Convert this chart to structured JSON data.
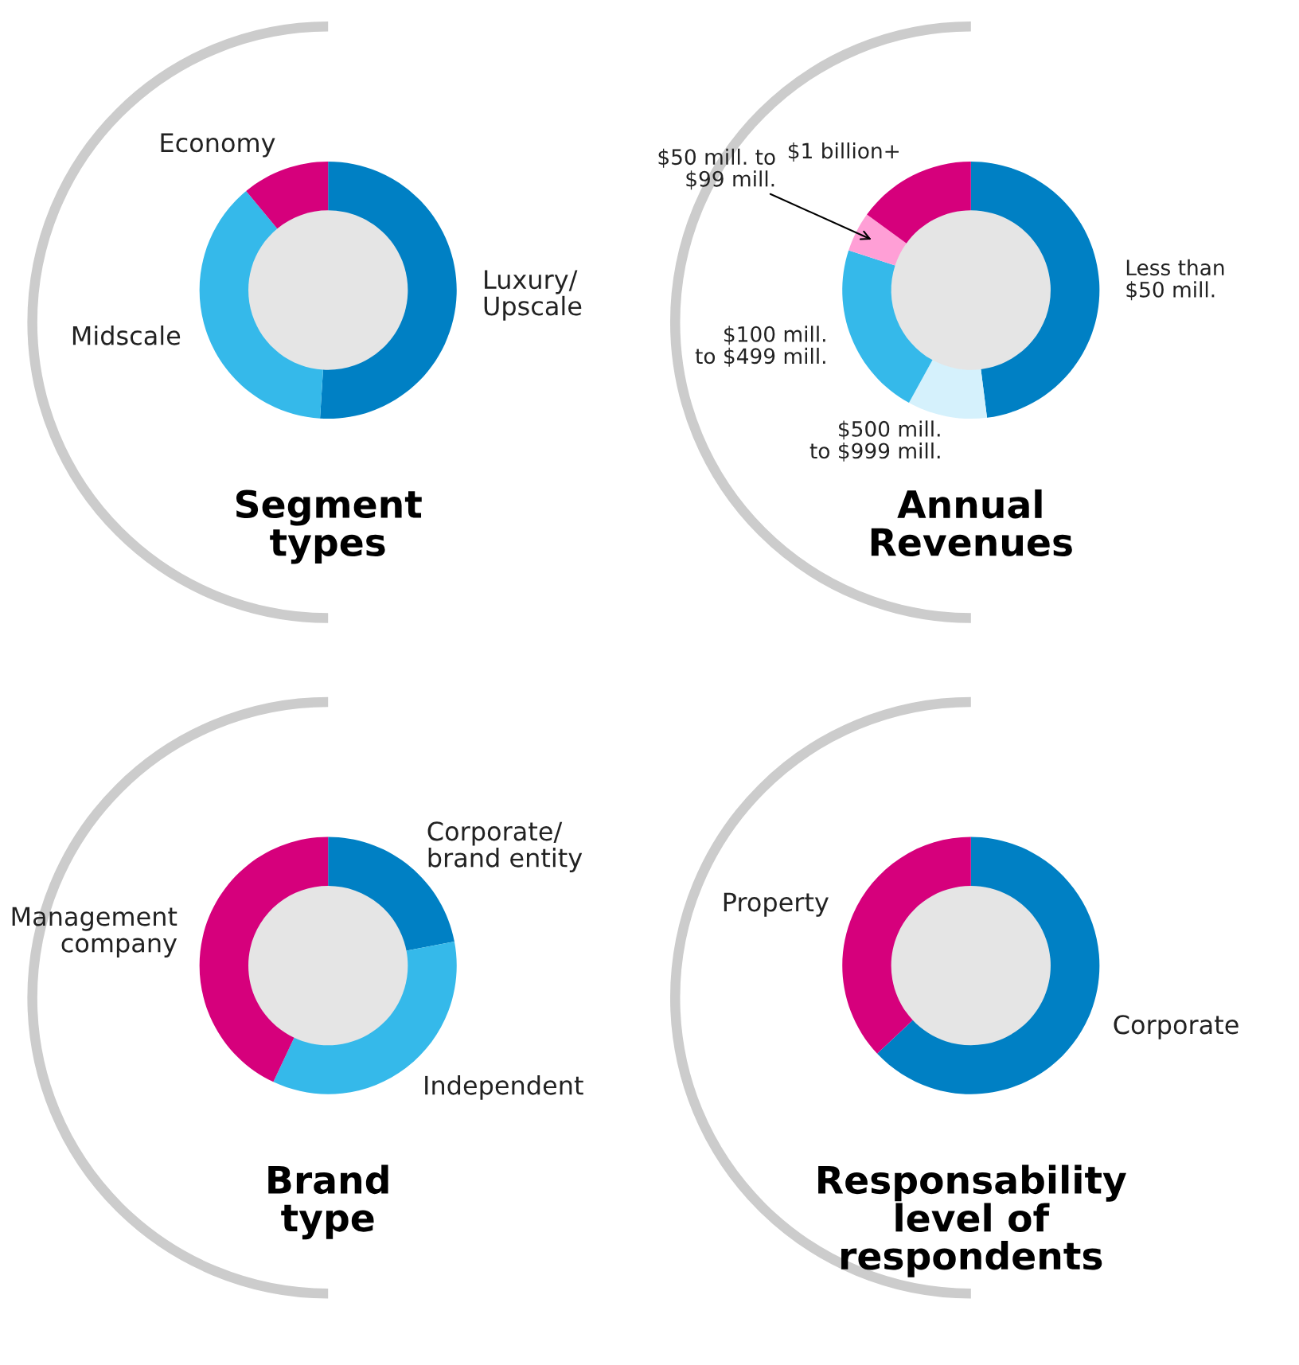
{
  "chart_data": [
    {
      "type": "donut",
      "title": "Segment\ntypes",
      "categories": [
        "Luxury/\nUpscale",
        "Midscale",
        "Economy"
      ],
      "values": [
        51,
        38,
        11
      ],
      "colors": [
        "#0080c4",
        "#35b9ea",
        "#d6007c"
      ]
    },
    {
      "type": "donut",
      "title": "Annual\nRevenues",
      "categories": [
        "Less than\n$50 mill.",
        "$500 mill.\nto $999 mill.",
        "$100 mill.\nto $499 mill.",
        "$50 mill. to\n$99 mill.",
        "$1 billion+"
      ],
      "values": [
        48,
        10,
        22,
        5,
        15
      ],
      "colors": [
        "#0080c4",
        "#d5f1fc",
        "#35b9ea",
        "#ff9fd6",
        "#d6007c"
      ]
    },
    {
      "type": "donut",
      "title": "Brand\ntype",
      "categories": [
        "Corporate/\nbrand entity",
        "Independent",
        "Management\ncompany"
      ],
      "values": [
        22,
        35,
        43
      ],
      "colors": [
        "#0080c4",
        "#35b9ea",
        "#d6007c"
      ]
    },
    {
      "type": "donut",
      "title": "Responsability\nlevel of\nrespondents",
      "categories": [
        "Corporate",
        "Property"
      ],
      "values": [
        63,
        37
      ],
      "colors": [
        "#0080c4",
        "#d6007c"
      ]
    }
  ]
}
